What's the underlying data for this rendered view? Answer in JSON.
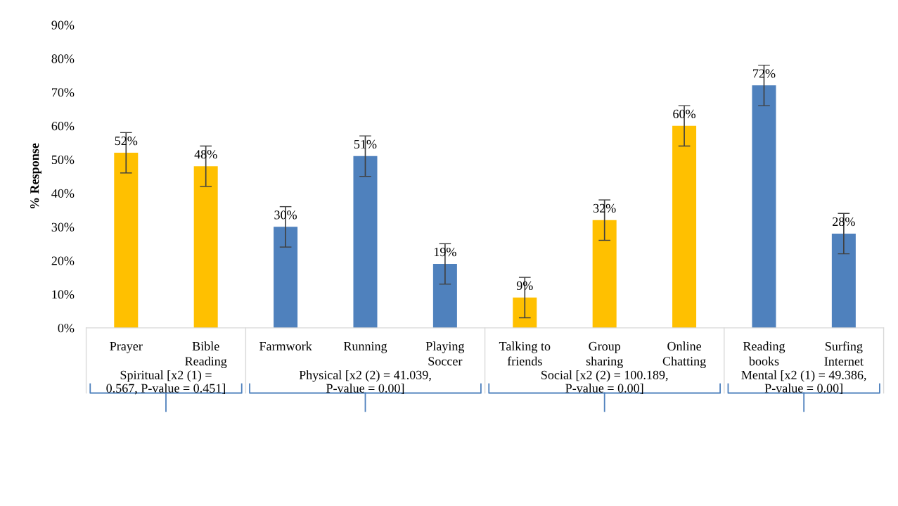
{
  "chart_data": {
    "type": "bar",
    "ylabel": "% Response",
    "categories": [
      "Prayer",
      "Bible Reading",
      "Farmwork",
      "Running",
      "Playing Soccer",
      "Talking to friends",
      "Group sharing",
      "Online Chatting",
      "Reading books",
      "Surfing Internet"
    ],
    "values": [
      52,
      48,
      30,
      51,
      19,
      9,
      32,
      60,
      72,
      28
    ],
    "errors": [
      6,
      6,
      6,
      6,
      6,
      6,
      6,
      6,
      6,
      6
    ],
    "value_labels": [
      "52%",
      "48%",
      "30%",
      "51%",
      "19%",
      "9%",
      "32%",
      "60%",
      "72%",
      "28%"
    ],
    "colors": [
      "#ffc000",
      "#ffc000",
      "#4f81bd",
      "#4f81bd",
      "#4f81bd",
      "#ffc000",
      "#ffc000",
      "#ffc000",
      "#4f81bd",
      "#4f81bd"
    ],
    "ylim": [
      0,
      90
    ],
    "yticks": [
      {
        "value": 0,
        "label": "0%"
      },
      {
        "value": 10,
        "label": "10%"
      },
      {
        "value": 20,
        "label": "20%"
      },
      {
        "value": 30,
        "label": "30%"
      },
      {
        "value": 40,
        "label": "40%"
      },
      {
        "value": 50,
        "label": "50%"
      },
      {
        "value": 60,
        "label": "60%"
      },
      {
        "value": 70,
        "label": "70%"
      },
      {
        "value": 80,
        "label": "80%"
      },
      {
        "value": 90,
        "label": "90%"
      }
    ],
    "grid": false,
    "annotations": [
      "Spiritual [x2 (1) = 0.567, P-value = 0.451]",
      "Physical [x2 (2) = 41.039, P-value = 0.00]",
      "Social [x2 (2) = 100.189, P-value = 0.00]",
      "Mental [x2 (1) = 49.386, P-value = 0.00]"
    ]
  }
}
